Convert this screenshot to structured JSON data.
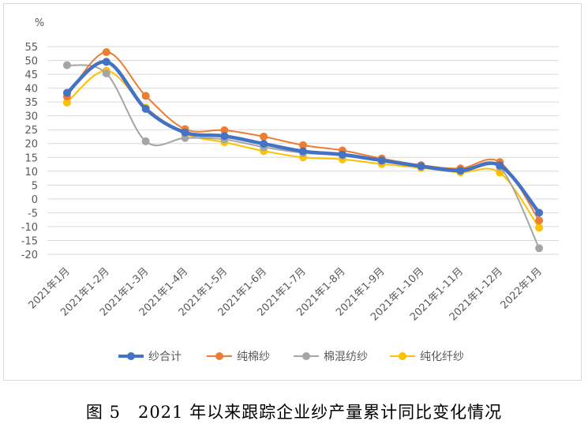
{
  "chart_data": {
    "type": "line",
    "unit_label": "%",
    "categories": [
      "2021年1月",
      "2021年1-2月",
      "2021年1-3月",
      "2021年1-4月",
      "2021年1-5月",
      "2021年1-6月",
      "2021年1-7月",
      "2021年1-8月",
      "2021年1-9月",
      "2021年1-10月",
      "2021年1-11月",
      "2021年1-12月",
      "2022年1月"
    ],
    "ylim": [
      -20,
      55
    ],
    "yticks": [
      55,
      50,
      45,
      40,
      35,
      30,
      25,
      20,
      15,
      10,
      5,
      0,
      -5,
      -10,
      -15,
      -20
    ],
    "grid": true,
    "legend_position": "bottom",
    "series": [
      {
        "name": "纱合计",
        "color": "#4472c4",
        "values": [
          38.3,
          49.5,
          32.5,
          24.0,
          22.7,
          19.9,
          17.2,
          16.0,
          13.9,
          11.8,
          10.2,
          12.1,
          -5.0
        ]
      },
      {
        "name": "纯棉纱",
        "color": "#ed7d31",
        "values": [
          37.0,
          53.0,
          37.2,
          25.2,
          24.8,
          22.5,
          19.4,
          17.5,
          14.6,
          12.2,
          11.0,
          13.3,
          -7.8
        ]
      },
      {
        "name": "棉混纺纱",
        "color": "#a5a5a5",
        "values": [
          48.3,
          45.3,
          20.8,
          22.0,
          21.5,
          18.7,
          16.6,
          15.7,
          13.7,
          11.6,
          10.2,
          11.5,
          -17.8
        ]
      },
      {
        "name": "纯化纤纱",
        "color": "#ffc000",
        "values": [
          34.8,
          46.3,
          33.0,
          23.5,
          20.5,
          17.3,
          15.0,
          14.3,
          12.6,
          11.2,
          9.6,
          9.5,
          -10.4
        ]
      }
    ]
  },
  "caption": "图 5　2021 年以来跟踪企业纱产量累计同比变化情况"
}
